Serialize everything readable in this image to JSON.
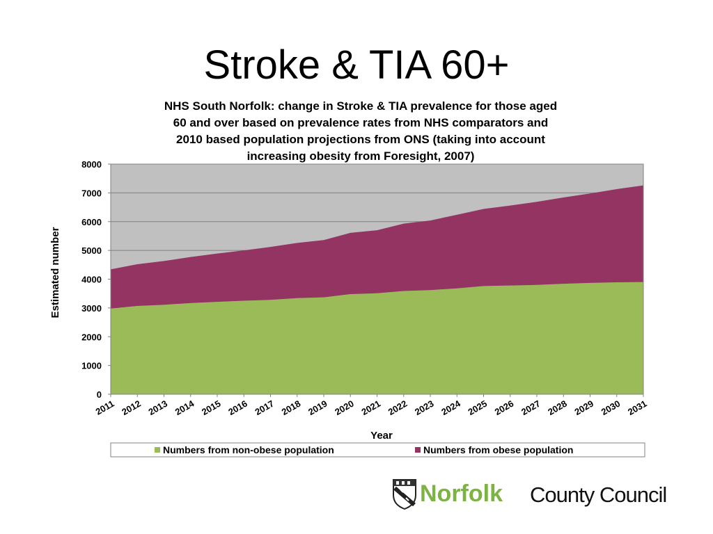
{
  "slide": {
    "title": "Stroke & TIA 60+"
  },
  "logo": {
    "bold_text": "Norfolk",
    "rest_text": "County Council",
    "brand_color": "#7cb342",
    "icon": "norfolk-shield-icon"
  },
  "chart_data": {
    "type": "area",
    "stacked": true,
    "title": "NHS South Norfolk: change in Stroke & TIA prevalence for those aged 60 and over based on prevalence rates from NHS comparators and 2010 based population projections from ONS (taking into account increasing obesity from Foresight, 2007)",
    "title_lines": [
      "NHS South Norfolk: change  in Stroke & TIA prevalence  for those aged",
      "60 and over based on prevalence  rates from NHS comparators and",
      "2010 based population  projections from ONS  (taking into account",
      "increasing  obesity from Foresight, 2007)"
    ],
    "xlabel": "Year",
    "ylabel": "Estimated number",
    "ylim": [
      0,
      8000
    ],
    "yticks": [
      "0",
      "1000",
      "2000",
      "3000",
      "4000",
      "5000",
      "6000",
      "7000",
      "8000"
    ],
    "categories": [
      "2011",
      "2012",
      "2013",
      "2014",
      "2015",
      "2016",
      "2017",
      "2018",
      "2019",
      "2020",
      "2021",
      "2022",
      "2023",
      "2024",
      "2025",
      "2026",
      "2027",
      "2028",
      "2029",
      "2030",
      "2031"
    ],
    "series": [
      {
        "name": "Numbers from non-obese population",
        "color": "#9bbb59",
        "values": [
          2980,
          3070,
          3110,
          3170,
          3210,
          3250,
          3280,
          3340,
          3370,
          3480,
          3510,
          3590,
          3620,
          3680,
          3760,
          3780,
          3800,
          3840,
          3870,
          3890,
          3900
        ]
      },
      {
        "name": "Numbers from obese population",
        "color": "#943462",
        "values": [
          1360,
          1450,
          1520,
          1600,
          1680,
          1750,
          1840,
          1920,
          1990,
          2130,
          2190,
          2340,
          2420,
          2560,
          2680,
          2780,
          2890,
          3000,
          3110,
          3240,
          3360
        ]
      }
    ],
    "plot_background": "#c0c0c0",
    "grid": true,
    "legend_position": "bottom"
  }
}
